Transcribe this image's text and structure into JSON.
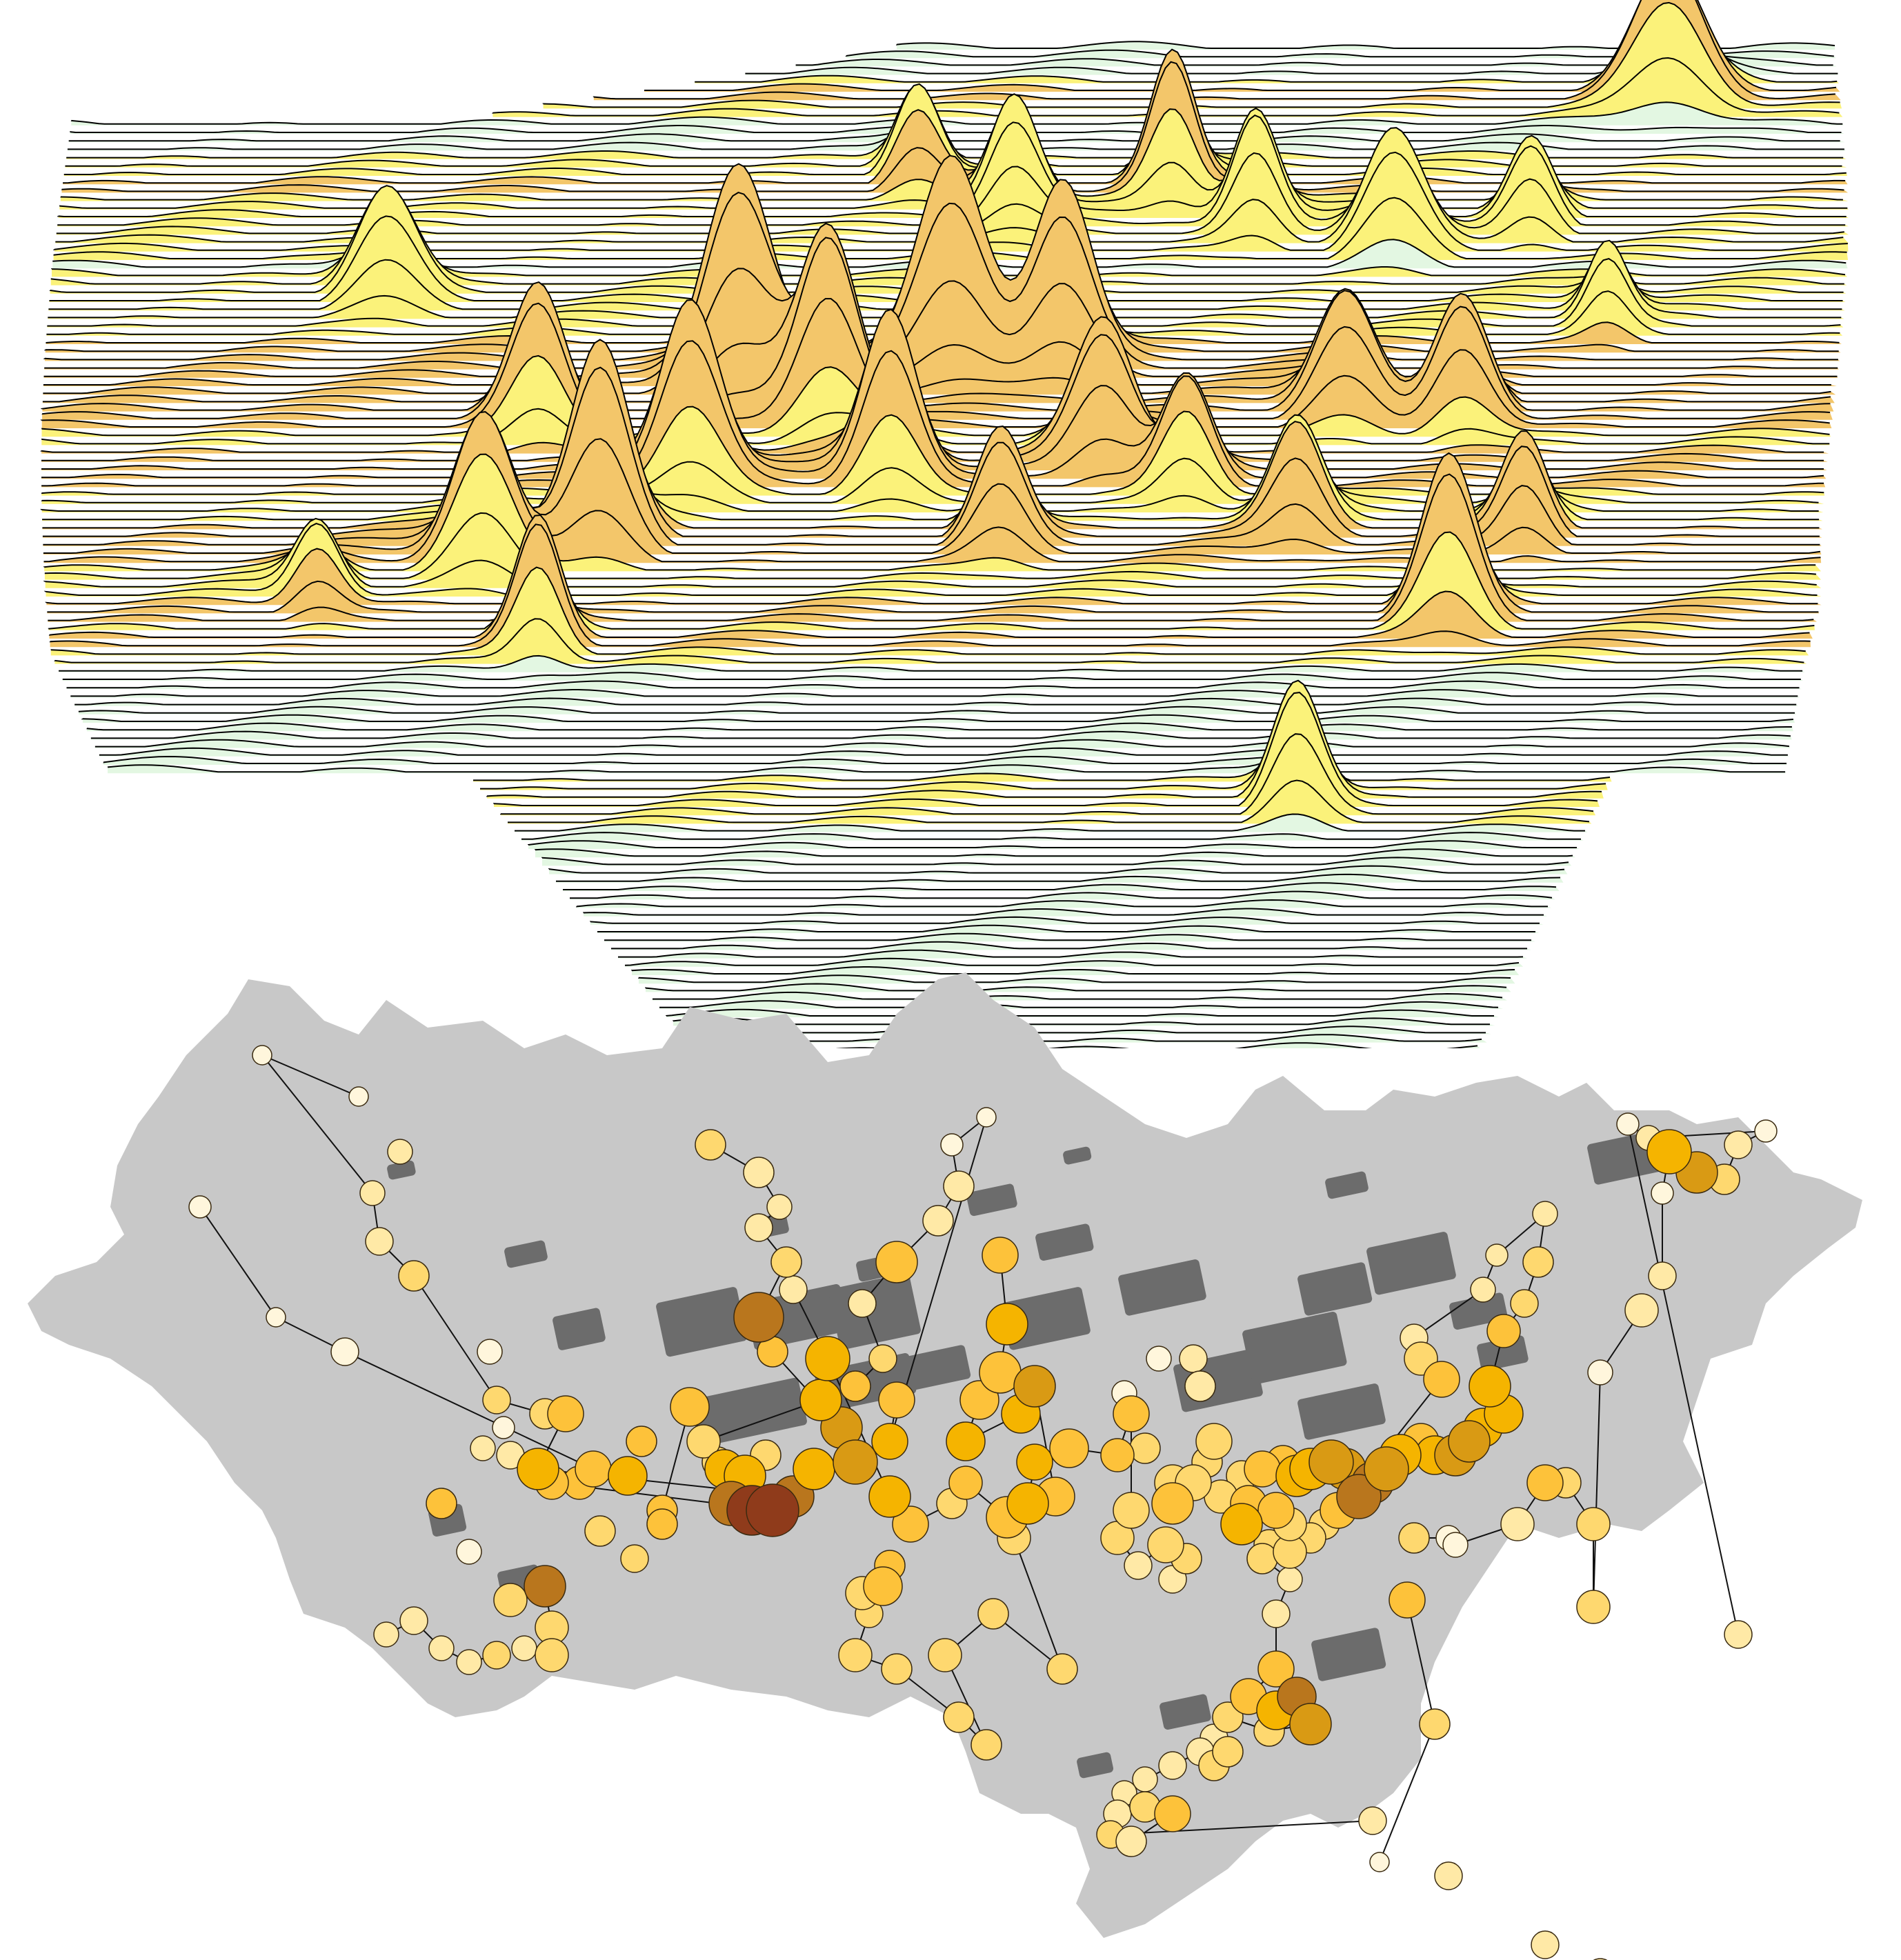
{
  "figure": {
    "panels": [
      {
        "id": "ridge",
        "kind": "ridgeline-density-surface"
      },
      {
        "id": "network",
        "kind": "proportional-symbol-network-map"
      }
    ]
  },
  "colors": {
    "background": "#ffffff",
    "ridge_low": "#e3f7e2",
    "ridge_mid": "#fbf27a",
    "ridge_high": "#f3c66a",
    "ridge_top": "#e9b45c",
    "ridge_line": "#000000",
    "region_fill": "#c8c8c8",
    "urban_fill": "#6c6c6c",
    "network_line": "#111111",
    "node_stroke": "#3a2a10",
    "node_scale": [
      "#fff6dc",
      "#ffe9a6",
      "#fed86f",
      "#fdc23a",
      "#f5b400",
      "#d99a14",
      "#b9761d",
      "#8f3b1b"
    ]
  }
}
